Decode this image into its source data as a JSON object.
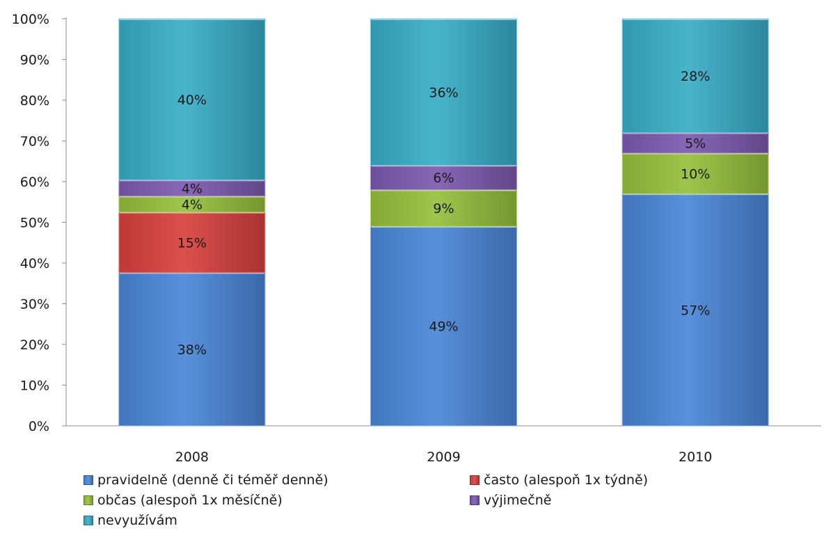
{
  "chart_data": {
    "type": "bar",
    "stacked": true,
    "percent_stacked": true,
    "categories": [
      "2008",
      "2009",
      "2010"
    ],
    "series": [
      {
        "name": "pravidelně (denně či téměř denně)",
        "values": [
          38,
          49,
          57
        ],
        "labels": [
          "38%",
          "49%",
          "57%"
        ],
        "color": "#4a86d8"
      },
      {
        "name": "často (alespoň 1x týdně)",
        "values": [
          15,
          0,
          0
        ],
        "labels": [
          "15%",
          "",
          ""
        ],
        "color": "#d8413e"
      },
      {
        "name": "občas (alespoň 1x měsíčně)",
        "values": [
          4,
          9,
          10
        ],
        "labels": [
          "4%",
          "9%",
          "10%"
        ],
        "color": "#96c03c"
      },
      {
        "name": "výjimečně",
        "values": [
          4,
          6,
          5
        ],
        "labels": [
          "4%",
          "6%",
          "5%"
        ],
        "color": "#7e5ab0"
      },
      {
        "name": "nevyužívám",
        "values": [
          40,
          36,
          28
        ],
        "labels": [
          "40%",
          "36%",
          "28%"
        ],
        "color": "#38adc8"
      }
    ],
    "yticks": [
      "0%",
      "10%",
      "20%",
      "30%",
      "40%",
      "50%",
      "60%",
      "70%",
      "80%",
      "90%",
      "100%"
    ],
    "ylim": [
      0,
      100
    ],
    "grid": false,
    "legend_position": "bottom"
  }
}
